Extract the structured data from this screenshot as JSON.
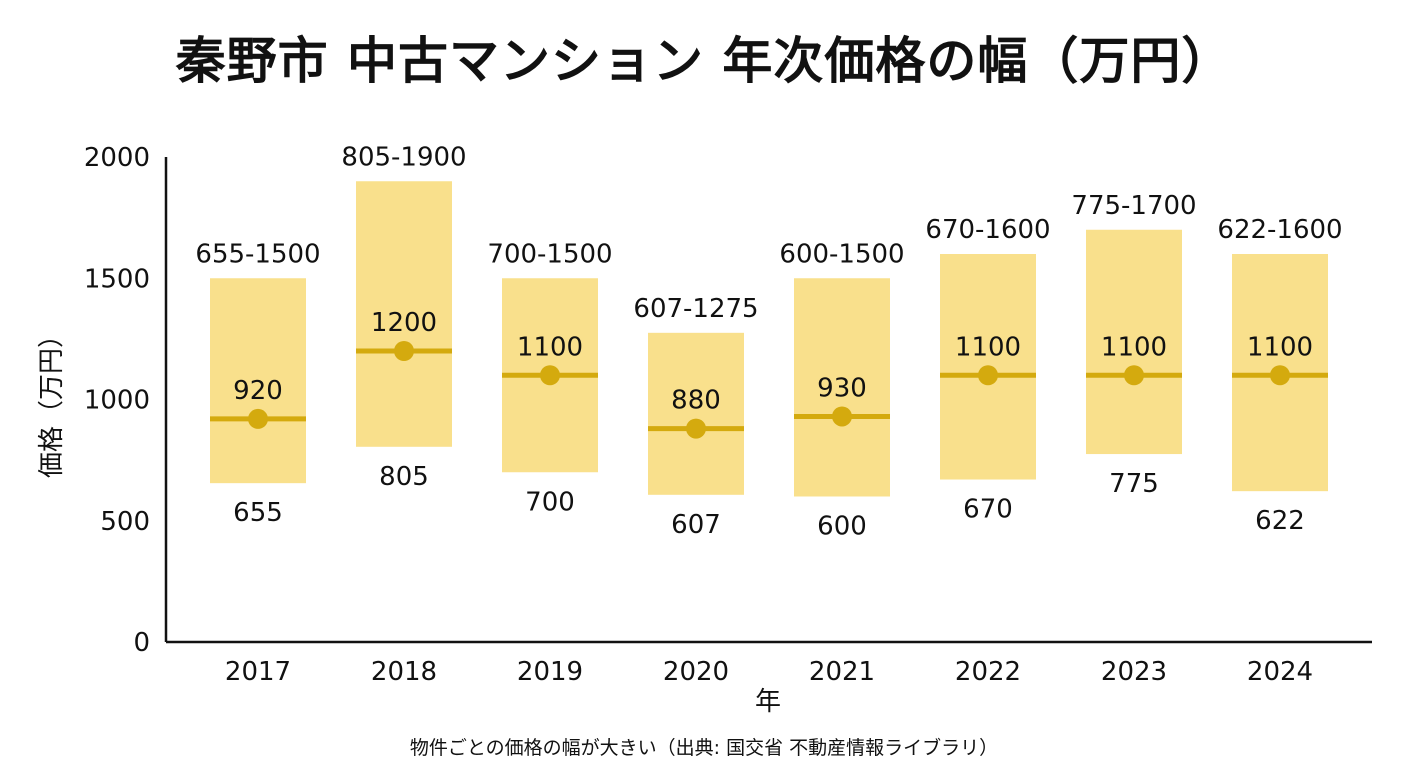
{
  "colors": {
    "box_fill": "#f9e08c",
    "median_line": "#d4aa0e",
    "median_dot": "#d4aa0e",
    "axis": "#111111"
  },
  "footnote": "物件ごとの価格の幅が大きい（出典: 国交省 不動産情報ライブラリ）",
  "chart_data": {
    "type": "range-bar",
    "title": "秦野市 中古マンション 年次価格の幅（万円）",
    "xlabel": "年",
    "ylabel": "価格（万円）",
    "ylim": [
      0,
      2000
    ],
    "yticks": [
      0,
      500,
      1000,
      1500,
      2000
    ],
    "categories": [
      "2017",
      "2018",
      "2019",
      "2020",
      "2021",
      "2022",
      "2023",
      "2024"
    ],
    "min": [
      655,
      805,
      700,
      607,
      600,
      670,
      775,
      622
    ],
    "max": [
      1500,
      1900,
      1500,
      1275,
      1500,
      1600,
      1700,
      1600
    ],
    "median": [
      920,
      1200,
      1100,
      880,
      930,
      1100,
      1100,
      1100
    ],
    "range_labels": [
      "655-1500",
      "805-1900",
      "700-1500",
      "607-1275",
      "600-1500",
      "670-1600",
      "775-1700",
      "622-1600"
    ],
    "min_labels": [
      "655",
      "805",
      "700",
      "607",
      "600",
      "670",
      "775",
      "622"
    ],
    "median_labels": [
      "920",
      "1200",
      "1100",
      "880",
      "930",
      "1100",
      "1100",
      "1100"
    ],
    "grid": false,
    "legend": "none"
  }
}
